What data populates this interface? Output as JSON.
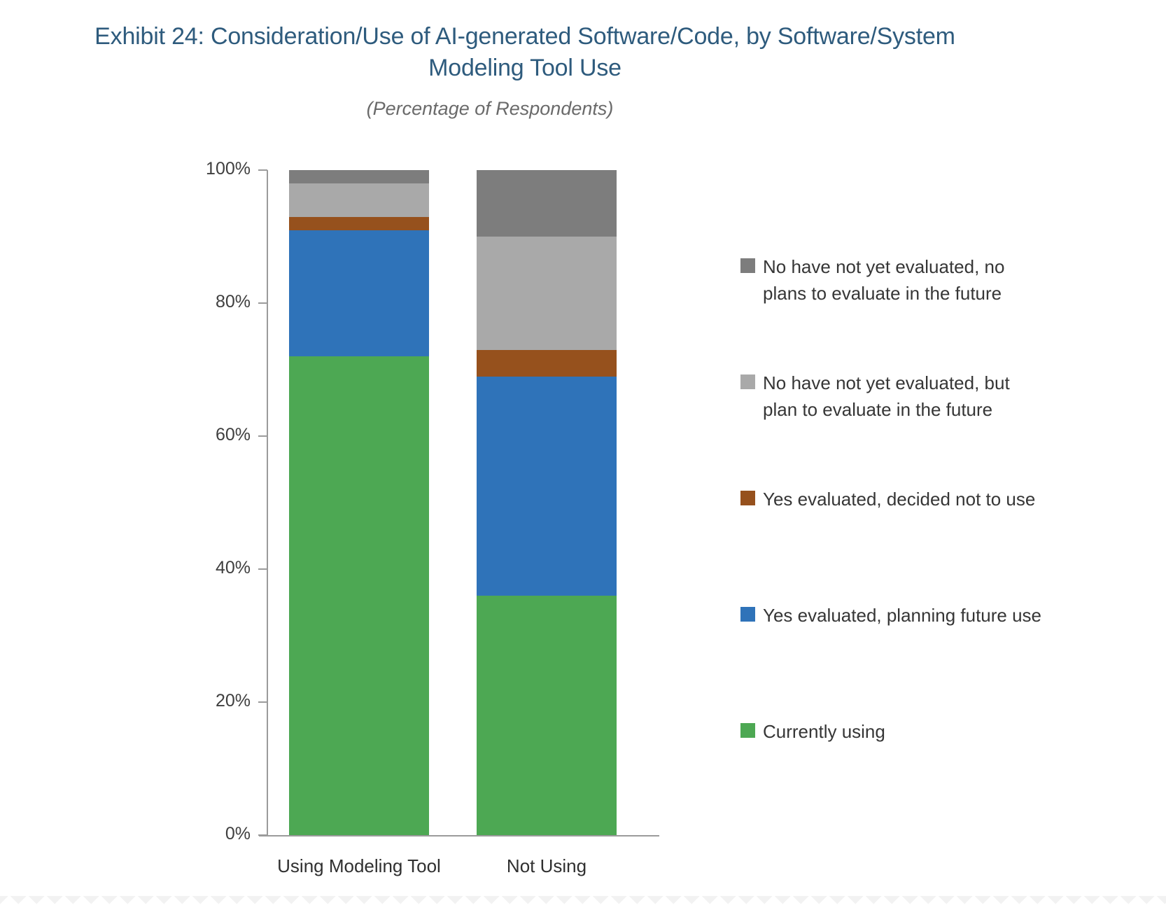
{
  "page": {
    "title_line1": "Exhibit 24: Consideration/Use of AI-generated Software/Code, by Software/System",
    "title_line2": "Modeling Tool Use",
    "subtitle": "(Percentage of Respondents)",
    "title_color": "#2E5B7D"
  },
  "chart_data": {
    "type": "bar",
    "stacked": true,
    "units": "percent",
    "title": "Exhibit 24: Consideration/Use of AI-generated Software/Code, by Software/System Modeling Tool Use",
    "subtitle": "(Percentage of Respondents)",
    "categories": [
      "Using Modeling Tool",
      "Not Using"
    ],
    "series": [
      {
        "name": "Currently using",
        "color": "#4DA853",
        "values": [
          72,
          36
        ],
        "legend_lines": [
          "Currently using"
        ]
      },
      {
        "name": "Yes evaluated, planning future use",
        "color": "#2F73B9",
        "values": [
          19,
          33
        ],
        "legend_lines": [
          "Yes evaluated, planning future use"
        ]
      },
      {
        "name": "Yes evaluated, decided not to use",
        "color": "#96511D",
        "values": [
          2,
          4
        ],
        "legend_lines": [
          "Yes evaluated, decided not to use"
        ]
      },
      {
        "name": "No have not yet evaluated, but plan to evaluate in the future",
        "color": "#A9A9A9",
        "values": [
          5,
          17
        ],
        "legend_lines": [
          "No have not yet evaluated, but",
          "plan to evaluate in the future"
        ]
      },
      {
        "name": "No have not yet evaluated, no plans to evaluate in the future",
        "color": "#7D7D7D",
        "values": [
          2,
          10
        ],
        "legend_lines": [
          "No have not yet evaluated, no",
          "plans to evaluate in the future"
        ]
      }
    ],
    "y_ticks": [
      "0%",
      "20%",
      "40%",
      "60%",
      "80%",
      "100%"
    ],
    "ylim": [
      0,
      100
    ],
    "grid": false,
    "legend_position": "right",
    "legend_order": "top-segment-first",
    "axis_color": "#9B9B9B"
  }
}
